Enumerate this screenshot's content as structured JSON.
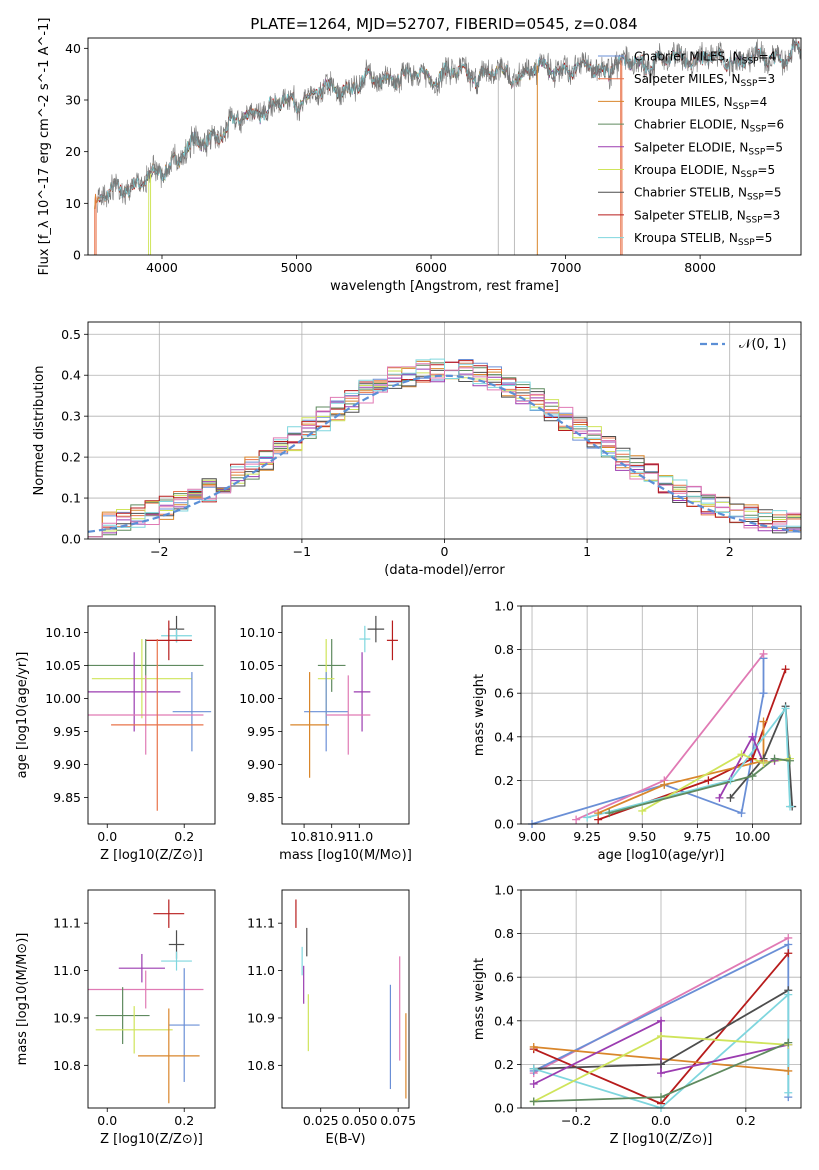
{
  "figure": {
    "title": "PLATE=1264, MJD=52707, FIBERID=0545, z=0.084"
  },
  "colors": {
    "Chabrier MILES": "#6a8fd6",
    "Salpeter MILES": "#e8734a",
    "Kroupa MILES": "#d9862b",
    "Chabrier ELODIE": "#5f8a5f",
    "Salpeter ELODIE": "#9b3cb0",
    "Kroupa ELODIE": "#cfe45a",
    "Chabrier STELIB": "#4d4d4d",
    "Salpeter STELIB": "#b71c1c",
    "Kroupa STELIB": "#7fd6de",
    "Pink": "#e07ab4",
    "Normal": "#5b8fd6"
  },
  "chart_data": [
    {
      "id": "spectrum",
      "type": "line",
      "title": "PLATE=1264, MJD=52707, FIBERID=0545, z=0.084",
      "xlabel": "wavelength [Angstrom, rest frame]",
      "ylabel": "Flux [f_λ 10^-17 erg cm^-2 s^-1 A^-1]",
      "xlim": [
        3450,
        8750
      ],
      "ylim": [
        0,
        42
      ],
      "xticks": [
        "4000",
        "5000",
        "6000",
        "7000",
        "8000"
      ],
      "yticks": [
        "0",
        "10",
        "20",
        "30",
        "40"
      ],
      "grid": false,
      "legend_position": "right",
      "legend": [
        "Chabrier MILES, N_SSP=4",
        "Salpeter MILES, N_SSP=3",
        "Kroupa MILES, N_SSP=4",
        "Chabrier ELODIE, N_SSP=6",
        "Salpeter ELODIE, N_SSP=5",
        "Kroupa ELODIE, N_SSP=5",
        "Chabrier STELIB, N_SSP=5",
        "Salpeter STELIB, N_SSP=3",
        "Kroupa STELIB, N_SSP=5"
      ],
      "continuum": [
        [
          3500,
          10
        ],
        [
          3700,
          13
        ],
        [
          3950,
          15
        ],
        [
          4150,
          20
        ],
        [
          4400,
          23
        ],
        [
          4700,
          28
        ],
        [
          5000,
          30
        ],
        [
          5300,
          32
        ],
        [
          5600,
          34
        ],
        [
          6000,
          35
        ],
        [
          6300,
          35
        ],
        [
          6600,
          35
        ],
        [
          6900,
          36
        ],
        [
          7200,
          36
        ],
        [
          7500,
          37
        ],
        [
          7800,
          38
        ],
        [
          8100,
          38
        ],
        [
          8400,
          38
        ],
        [
          8750,
          39
        ]
      ]
    },
    {
      "id": "residuals",
      "type": "histogram",
      "xlabel": "(data-model)/error",
      "ylabel": "Normed distribution",
      "xlim": [
        -2.5,
        2.5
      ],
      "ylim": [
        0,
        0.53
      ],
      "xticks": [
        "−2",
        "−1",
        "0",
        "1",
        "2"
      ],
      "yticks": [
        "0.0",
        "0.1",
        "0.2",
        "0.3",
        "0.4",
        "0.5"
      ],
      "grid": true,
      "legend_position": "top-right",
      "normal_label": "𝒩(0, 1)",
      "bin_width": 0.1
    },
    {
      "id": "age-vs-Z",
      "type": "errorbar",
      "xlabel": "Z [log10(Z/Z⊙)]",
      "ylabel": "age [log10(age/yr)]",
      "xlim": [
        -0.05,
        0.28
      ],
      "ylim": [
        9.81,
        10.14
      ],
      "xticks": [
        "0.0",
        "0.2"
      ],
      "yticks": [
        "9.85",
        "9.90",
        "9.95",
        "10.00",
        "10.05",
        "10.10"
      ],
      "points": [
        {
          "s": "Chabrier STELIB",
          "x": 0.18,
          "xe": 0.02,
          "y": 10.105,
          "ye": 0.02
        },
        {
          "s": "Kroupa STELIB",
          "x": 0.18,
          "xe": 0.04,
          "y": 10.095,
          "ye": 0.01
        },
        {
          "s": "Salpeter STELIB",
          "x": 0.16,
          "xe": 0.06,
          "y": 10.088,
          "ye": 0.03
        },
        {
          "s": "Chabrier ELODIE",
          "x": 0.1,
          "xe": 0.15,
          "y": 10.05,
          "ye": 0.04
        },
        {
          "s": "Kroupa ELODIE",
          "x": 0.09,
          "xe": 0.13,
          "y": 10.03,
          "ye": 0.06
        },
        {
          "s": "Salpeter ELODIE",
          "x": 0.07,
          "xe": 0.12,
          "y": 10.01,
          "ye": 0.06
        },
        {
          "s": "Chabrier MILES",
          "x": 0.22,
          "xe": 0.05,
          "y": 9.98,
          "ye": 0.06
        },
        {
          "s": "Pink",
          "x": 0.1,
          "xe": 0.15,
          "y": 9.975,
          "ye": 0.06
        },
        {
          "s": "Salpeter MILES",
          "x": 0.13,
          "xe": 0.12,
          "y": 9.96,
          "ye": 0.13
        }
      ]
    },
    {
      "id": "age-vs-mass",
      "type": "errorbar",
      "xlabel": "mass [log10(M/M⊙)]",
      "ylabel": "",
      "xlim": [
        10.72,
        11.18
      ],
      "ylim": [
        9.81,
        10.14
      ],
      "xticks": [
        "10.8",
        "10.9",
        "11.0"
      ],
      "yticks": [
        "9.85",
        "9.90",
        "9.95",
        "10.00",
        "10.05",
        "10.10"
      ],
      "points": [
        {
          "s": "Chabrier STELIB",
          "x": 11.06,
          "xe": 0.03,
          "y": 10.105,
          "ye": 0.02
        },
        {
          "s": "Kroupa STELIB",
          "x": 11.02,
          "xe": 0.02,
          "y": 10.09,
          "ye": 0.02
        },
        {
          "s": "Salpeter STELIB",
          "x": 11.12,
          "xe": 0.02,
          "y": 10.088,
          "ye": 0.03
        },
        {
          "s": "Chabrier ELODIE",
          "x": 10.9,
          "xe": 0.05,
          "y": 10.05,
          "ye": 0.04
        },
        {
          "s": "Kroupa ELODIE",
          "x": 10.88,
          "xe": 0.03,
          "y": 10.03,
          "ye": 0.06
        },
        {
          "s": "Salpeter ELODIE",
          "x": 11.01,
          "xe": 0.03,
          "y": 10.01,
          "ye": 0.06
        },
        {
          "s": "Chabrier MILES",
          "x": 10.88,
          "xe": 0.08,
          "y": 9.98,
          "ye": 0.06
        },
        {
          "s": "Pink",
          "x": 10.96,
          "xe": 0.08,
          "y": 9.975,
          "ye": 0.06
        },
        {
          "s": "Kroupa MILES",
          "x": 10.82,
          "xe": 0.07,
          "y": 9.96,
          "ye": 0.08
        }
      ]
    },
    {
      "id": "weight-vs-age",
      "type": "line",
      "xlabel": "age [log10(age/yr)]",
      "ylabel": "mass weight",
      "xlim": [
        8.95,
        10.22
      ],
      "ylim": [
        0,
        1
      ],
      "xticks": [
        "9.00",
        "9.25",
        "9.50",
        "9.75",
        "10.00"
      ],
      "yticks": [
        "0.0",
        "0.2",
        "0.4",
        "0.6",
        "0.8",
        "1.0"
      ],
      "grid": true,
      "series": [
        {
          "s": "Chabrier MILES",
          "x": [
            9.0,
            9.6,
            9.95,
            10.05,
            10.05
          ],
          "y": [
            0.0,
            0.18,
            0.05,
            0.6,
            0.76
          ]
        },
        {
          "s": "Pink",
          "x": [
            9.2,
            9.6,
            10.05
          ],
          "y": [
            0.02,
            0.2,
            0.78
          ]
        },
        {
          "s": "Salpeter STELIB",
          "x": [
            9.3,
            9.8,
            10.0,
            10.15
          ],
          "y": [
            0.02,
            0.2,
            0.3,
            0.71
          ]
        },
        {
          "s": "Kroupa MILES",
          "x": [
            9.3,
            9.6,
            10.05,
            10.05
          ],
          "y": [
            0.05,
            0.18,
            0.29,
            0.47
          ]
        },
        {
          "s": "Chabrier STELIB",
          "x": [
            9.9,
            10.05,
            10.15,
            10.18
          ],
          "y": [
            0.12,
            0.3,
            0.54,
            0.08
          ]
        },
        {
          "s": "Kroupa STELIB",
          "x": [
            9.25,
            9.9,
            10.15,
            10.17
          ],
          "y": [
            0.03,
            0.2,
            0.53,
            0.08
          ]
        },
        {
          "s": "Salpeter ELODIE",
          "x": [
            9.85,
            10.0,
            10.05,
            10.1
          ],
          "y": [
            0.12,
            0.4,
            0.28,
            0.29
          ]
        },
        {
          "s": "Kroupa ELODIE",
          "x": [
            9.5,
            9.95,
            10.05,
            10.17
          ],
          "y": [
            0.06,
            0.32,
            0.28,
            0.3
          ]
        },
        {
          "s": "Chabrier ELODIE",
          "x": [
            9.35,
            10.0,
            10.1,
            10.17
          ],
          "y": [
            0.05,
            0.22,
            0.3,
            0.29
          ]
        }
      ]
    },
    {
      "id": "mass-vs-Z",
      "type": "errorbar",
      "xlabel": "Z [log10(Z/Z⊙)]",
      "ylabel": "mass [log10(M/M⊙)]",
      "xlim": [
        -0.05,
        0.28
      ],
      "ylim": [
        10.71,
        11.17
      ],
      "xticks": [
        "0.0",
        "0.2"
      ],
      "yticks": [
        "10.8",
        "10.9",
        "11.0",
        "11.1"
      ],
      "points": [
        {
          "s": "Salpeter STELIB",
          "x": 0.16,
          "xe": 0.04,
          "y": 11.12,
          "ye": 0.03
        },
        {
          "s": "Chabrier STELIB",
          "x": 0.18,
          "xe": 0.02,
          "y": 11.055,
          "ye": 0.03
        },
        {
          "s": "Kroupa STELIB",
          "x": 0.18,
          "xe": 0.04,
          "y": 11.02,
          "ye": 0.02
        },
        {
          "s": "Salpeter ELODIE",
          "x": 0.09,
          "xe": 0.06,
          "y": 11.005,
          "ye": 0.03
        },
        {
          "s": "Pink",
          "x": 0.1,
          "xe": 0.15,
          "y": 10.96,
          "ye": 0.04
        },
        {
          "s": "Chabrier ELODIE",
          "x": 0.04,
          "xe": 0.07,
          "y": 10.905,
          "ye": 0.06
        },
        {
          "s": "Chabrier MILES",
          "x": 0.2,
          "xe": 0.04,
          "y": 10.885,
          "ye": 0.12
        },
        {
          "s": "Kroupa ELODIE",
          "x": 0.07,
          "xe": 0.1,
          "y": 10.875,
          "ye": 0.05
        },
        {
          "s": "Kroupa MILES",
          "x": 0.16,
          "xe": 0.08,
          "y": 10.82,
          "ye": 0.1
        }
      ]
    },
    {
      "id": "mass-vs-EBV",
      "type": "errorbar",
      "xlabel": "E(B-V)",
      "ylabel": "",
      "xlim": [
        0.0,
        0.082
      ],
      "ylim": [
        10.71,
        11.17
      ],
      "xticks": [
        "0.025",
        "0.050",
        "0.075"
      ],
      "yticks": [
        "10.8",
        "10.9",
        "11.0",
        "11.1"
      ],
      "points": [
        {
          "s": "Salpeter STELIB",
          "x": 0.009,
          "xe": 0,
          "y": 11.12,
          "ye": 0.03
        },
        {
          "s": "Chabrier STELIB",
          "x": 0.016,
          "xe": 0,
          "y": 11.06,
          "ye": 0.03
        },
        {
          "s": "Kroupa STELIB",
          "x": 0.013,
          "xe": 0,
          "y": 11.02,
          "ye": 0.03
        },
        {
          "s": "Salpeter ELODIE",
          "x": 0.014,
          "xe": 0,
          "y": 10.97,
          "ye": 0.04
        },
        {
          "s": "Kroupa ELODIE",
          "x": 0.017,
          "xe": 0,
          "y": 10.89,
          "ye": 0.06
        },
        {
          "s": "Chabrier MILES",
          "x": 0.07,
          "xe": 0,
          "y": 10.86,
          "ye": 0.11
        },
        {
          "s": "Pink",
          "x": 0.076,
          "xe": 0,
          "y": 10.92,
          "ye": 0.11
        },
        {
          "s": "Kroupa MILES",
          "x": 0.08,
          "xe": 0,
          "y": 10.82,
          "ye": 0.09
        }
      ]
    },
    {
      "id": "weight-vs-Z",
      "type": "line",
      "xlabel": "Z [log10(Z/Z⊙)]",
      "ylabel": "mass weight",
      "xlim": [
        -0.33,
        0.33
      ],
      "ylim": [
        0,
        1
      ],
      "xticks": [
        "−0.2",
        "0.0",
        "0.2"
      ],
      "yticks": [
        "0.0",
        "0.2",
        "0.4",
        "0.6",
        "0.8",
        "1.0"
      ],
      "grid": true,
      "series": [
        {
          "s": "Pink",
          "x": [
            -0.3,
            0.3
          ],
          "y": [
            0.16,
            0.78
          ]
        },
        {
          "s": "Chabrier MILES",
          "x": [
            -0.3,
            0.3,
            0.3
          ],
          "y": [
            0.17,
            0.75,
            0.05
          ]
        },
        {
          "s": "Salpeter STELIB",
          "x": [
            -0.3,
            0.0,
            0.3
          ],
          "y": [
            0.27,
            0.02,
            0.71
          ]
        },
        {
          "s": "Kroupa MILES",
          "x": [
            -0.3,
            0.3
          ],
          "y": [
            0.28,
            0.17
          ]
        },
        {
          "s": "Chabrier STELIB",
          "x": [
            -0.3,
            0.0,
            0.3
          ],
          "y": [
            0.18,
            0.2,
            0.54
          ]
        },
        {
          "s": "Kroupa STELIB",
          "x": [
            -0.3,
            0.0,
            0.3,
            0.3
          ],
          "y": [
            0.18,
            0.0,
            0.52,
            0.07
          ]
        },
        {
          "s": "Salpeter ELODIE",
          "x": [
            -0.3,
            0.0,
            0.0,
            0.3
          ],
          "y": [
            0.11,
            0.4,
            0.16,
            0.29
          ]
        },
        {
          "s": "Kroupa ELODIE",
          "x": [
            -0.3,
            0.0,
            0.3
          ],
          "y": [
            0.03,
            0.33,
            0.29
          ]
        },
        {
          "s": "Chabrier ELODIE",
          "x": [
            -0.3,
            0.0,
            0.3
          ],
          "y": [
            0.03,
            0.05,
            0.3
          ]
        }
      ]
    }
  ]
}
